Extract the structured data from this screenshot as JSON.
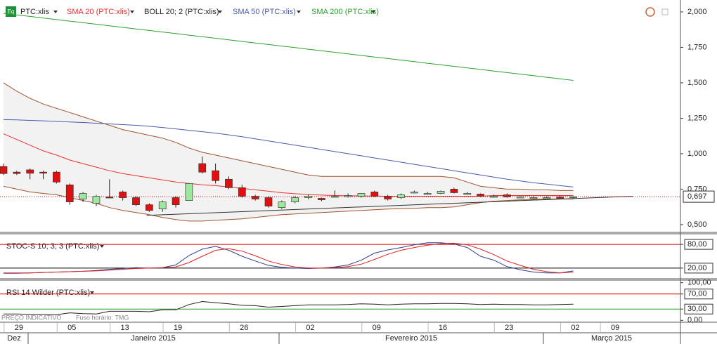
{
  "chart_data": [
    {
      "type": "candlestick",
      "ticker": "PTC:xlis",
      "icon": "Eq",
      "up_color": "#9ee89e",
      "down_color": "#e01010",
      "categories": [
        null,
        "29",
        null,
        null,
        null,
        "05",
        null,
        null,
        null,
        "13",
        null,
        null,
        null,
        "19",
        null,
        null,
        null,
        null,
        "26",
        null,
        null,
        null,
        null,
        "02",
        null,
        null,
        null,
        null,
        "09",
        null,
        null,
        null,
        null,
        "16",
        null,
        null,
        null,
        null,
        "23",
        null,
        null,
        null,
        null,
        "02",
        null,
        null,
        "09"
      ],
      "months": [
        "Dez",
        "Janeiro 2015",
        "Fevereiro 2015",
        "Março 2015"
      ],
      "open": [
        0.91,
        0.87,
        0.886,
        0.87,
        0.87,
        0.78,
        0.68,
        0.65,
        0.695,
        0.73,
        0.69,
        0.64,
        0.61,
        0.69,
        0.67,
        0.93,
        0.88,
        0.82,
        0.76,
        0.7,
        0.69,
        0.62,
        0.66,
        0.69,
        0.685,
        0.695,
        0.7,
        0.7,
        0.73,
        0.7,
        0.69,
        0.73,
        0.72,
        0.72,
        0.75,
        0.72,
        0.715,
        0.7,
        0.71,
        0.695,
        0.69,
        0.69,
        0.695,
        0.69,
        null,
        null,
        null
      ],
      "high": [
        0.93,
        0.88,
        0.895,
        0.88,
        0.88,
        0.79,
        0.73,
        0.71,
        0.82,
        0.74,
        0.7,
        0.65,
        0.67,
        0.7,
        0.79,
        0.98,
        0.93,
        0.84,
        0.78,
        0.71,
        0.7,
        0.67,
        0.7,
        0.71,
        0.69,
        0.74,
        0.72,
        0.72,
        0.74,
        0.71,
        0.72,
        0.74,
        0.73,
        0.74,
        0.76,
        0.73,
        0.72,
        0.71,
        0.72,
        0.7,
        0.7,
        0.7,
        0.7,
        0.7,
        null,
        null,
        null
      ],
      "low": [
        0.85,
        0.85,
        0.82,
        0.82,
        0.79,
        0.64,
        0.66,
        0.63,
        0.69,
        0.67,
        0.63,
        0.59,
        0.59,
        0.62,
        0.67,
        0.86,
        0.79,
        0.75,
        0.69,
        0.67,
        0.62,
        0.61,
        0.65,
        0.68,
        0.665,
        0.69,
        0.69,
        0.69,
        0.695,
        0.67,
        0.68,
        0.72,
        0.71,
        0.715,
        0.72,
        0.71,
        0.695,
        0.69,
        0.69,
        0.69,
        0.685,
        0.685,
        0.68,
        0.685,
        null,
        null,
        null
      ],
      "close": [
        0.86,
        0.86,
        0.862,
        0.865,
        0.8,
        0.66,
        0.72,
        0.7,
        0.69,
        0.69,
        0.64,
        0.6,
        0.66,
        0.64,
        0.79,
        0.87,
        0.81,
        0.76,
        0.7,
        0.68,
        0.63,
        0.66,
        0.69,
        0.7,
        0.675,
        0.7,
        0.705,
        0.72,
        0.7,
        0.68,
        0.71,
        0.73,
        0.72,
        0.735,
        0.725,
        0.72,
        0.7,
        0.7,
        0.695,
        0.695,
        0.69,
        0.69,
        0.685,
        0.697,
        null,
        null,
        null
      ],
      "series": [
        {
          "name": "SMA 20 (PTC:xlis)",
          "color": "#e8312f",
          "values": [
            1.14,
            1.1,
            1.06,
            1.02,
            0.99,
            0.955,
            0.93,
            0.905,
            0.88,
            0.86,
            0.845,
            0.83,
            0.815,
            0.8,
            0.79,
            0.78,
            0.775,
            0.765,
            0.755,
            0.745,
            0.735,
            0.725,
            0.718,
            0.712,
            0.708,
            0.705,
            0.703,
            0.702,
            0.701,
            0.7,
            0.7,
            0.7,
            0.7,
            0.7,
            0.7,
            0.7,
            0.7,
            0.705,
            0.705,
            0.705,
            0.705,
            0.705,
            0.705,
            0.705,
            null,
            null,
            null
          ]
        },
        {
          "name": "BOLL 20; 2 (PTC:xlis)",
          "color": "#a0522d",
          "fill": "#f2f2f2",
          "upper": [
            1.5,
            1.44,
            1.39,
            1.35,
            1.32,
            1.29,
            1.26,
            1.23,
            1.2,
            1.17,
            1.15,
            1.13,
            1.11,
            1.08,
            1.04,
            1.01,
            0.99,
            0.97,
            0.95,
            0.93,
            0.91,
            0.89,
            0.87,
            0.85,
            0.84,
            0.84,
            0.84,
            0.84,
            0.84,
            0.84,
            0.84,
            0.84,
            0.84,
            0.84,
            0.83,
            0.8,
            0.77,
            0.76,
            0.75,
            0.75,
            0.745,
            0.745,
            0.74,
            0.74,
            null,
            null,
            null
          ],
          "lower": [
            0.77,
            0.75,
            0.73,
            0.72,
            0.71,
            0.69,
            0.67,
            0.65,
            0.62,
            0.6,
            0.585,
            0.57,
            0.55,
            0.535,
            0.525,
            0.525,
            0.53,
            0.535,
            0.54,
            0.55,
            0.56,
            0.57,
            0.575,
            0.58,
            0.585,
            0.59,
            0.595,
            0.6,
            0.605,
            0.61,
            0.612,
            0.615,
            0.62,
            0.62,
            0.625,
            0.64,
            0.655,
            0.665,
            0.67,
            0.675,
            0.678,
            0.68,
            0.68,
            0.68,
            null,
            null,
            null
          ]
        },
        {
          "name": "SMA 50 (PTC:xlis)",
          "color": "#4a5aa8",
          "values": [
            1.24,
            1.238,
            1.235,
            1.232,
            1.228,
            1.224,
            1.22,
            1.215,
            1.21,
            1.205,
            1.2,
            1.193,
            1.185,
            1.175,
            1.165,
            1.155,
            1.145,
            1.133,
            1.12,
            1.105,
            1.09,
            1.075,
            1.06,
            1.045,
            1.03,
            1.015,
            1.0,
            0.985,
            0.97,
            0.955,
            0.94,
            0.925,
            0.91,
            0.895,
            0.88,
            0.865,
            0.85,
            0.835,
            0.82,
            0.808,
            0.795,
            0.785,
            0.775,
            0.765,
            null,
            null,
            null
          ]
        },
        {
          "name": "SMA 200 (PTC:xlis)",
          "color": "#2ca02c",
          "values": [
            1.99,
            1.979,
            1.968,
            1.957,
            1.946,
            1.935,
            1.924,
            1.913,
            1.902,
            1.891,
            1.88,
            1.869,
            1.858,
            1.847,
            1.836,
            1.825,
            1.814,
            1.803,
            1.792,
            1.781,
            1.77,
            1.759,
            1.748,
            1.737,
            1.726,
            1.715,
            1.704,
            1.693,
            1.682,
            1.671,
            1.66,
            1.649,
            1.638,
            1.627,
            1.616,
            1.605,
            1.594,
            1.583,
            1.572,
            1.561,
            1.55,
            1.539,
            1.528,
            1.517,
            null,
            null,
            null
          ]
        }
      ],
      "trendline": {
        "x": [
          10.8,
          47.5
        ],
        "values": [
          0.565,
          0.7
        ],
        "color": "#333333"
      },
      "last_price": {
        "value": 0.697,
        "label": "0,697",
        "color": "#d00000"
      },
      "ylim": [
        0.45,
        2.074
      ],
      "yticks": [
        {
          "value": 2,
          "label": "2,000"
        },
        {
          "value": 1.75,
          "label": "1,750"
        },
        {
          "value": 1.5,
          "label": "1,500"
        },
        {
          "value": 1.25,
          "label": "1,250"
        },
        {
          "value": 1,
          "label": "1,000"
        },
        {
          "value": 0.75,
          "label": "0,750"
        },
        {
          "value": 0.5,
          "label": "0,500"
        }
      ],
      "footer": [
        "PREÇO INDICATIVO",
        "Fuso horário: TMG"
      ]
    },
    {
      "type": "line",
      "title": "STOC-S 10; 3; 3 (PTC:xlis)",
      "series": [
        {
          "color": "#2e3f8f",
          "values": [
            7,
            7,
            8,
            9,
            10,
            11,
            12,
            14,
            17,
            19,
            21,
            20,
            21,
            28,
            52,
            68,
            75,
            65,
            50,
            38,
            27,
            22,
            20,
            19,
            20,
            23,
            28,
            40,
            58,
            66,
            72,
            79,
            84,
            84,
            81,
            72,
            50,
            40,
            24,
            16,
            10,
            8,
            8,
            13
          ]
        },
        {
          "color": "#e02020",
          "values": [
            8,
            8,
            8,
            9,
            10,
            11,
            12,
            13,
            15,
            17,
            19,
            20,
            21,
            23,
            34,
            50,
            65,
            69,
            63,
            51,
            38,
            29,
            23,
            20,
            20,
            21,
            24,
            30,
            42,
            55,
            65,
            72,
            78,
            82,
            83,
            79,
            68,
            54,
            38,
            27,
            17,
            11,
            8,
            10
          ]
        }
      ],
      "ylim": [
        -5,
        105
      ],
      "yticks": [
        {
          "value": 80,
          "label": "80,00"
        },
        {
          "value": 20,
          "label": "20,00"
        }
      ],
      "levels": [
        {
          "value": 80,
          "color": "#d00000"
        },
        {
          "value": 20,
          "color": "#000000"
        }
      ]
    },
    {
      "type": "line",
      "title": "RSI 14 Wilder (PTC:xlis)",
      "series": [
        {
          "color": "#222222",
          "values": [
            17,
            17,
            16,
            16,
            15,
            20,
            18,
            17,
            24,
            24,
            24,
            23,
            28,
            28,
            42,
            50,
            47,
            44,
            40,
            39,
            35,
            37,
            39,
            41,
            41,
            41,
            42,
            44,
            43,
            41,
            43,
            44,
            44,
            45,
            45,
            44,
            42,
            43,
            42,
            42,
            41,
            41,
            42,
            43
          ]
        }
      ],
      "ylim": [
        -5,
        105
      ],
      "yticks": [
        {
          "value": 100,
          "label": "100,00"
        },
        {
          "value": 70,
          "label": "70,00"
        },
        {
          "value": 30,
          "label": "30,00"
        },
        {
          "value": 0,
          "label": "0,00"
        }
      ],
      "levels": [
        {
          "value": 70,
          "color": "#d00000"
        },
        {
          "value": 30,
          "color": "#1a9a1a"
        }
      ]
    }
  ]
}
